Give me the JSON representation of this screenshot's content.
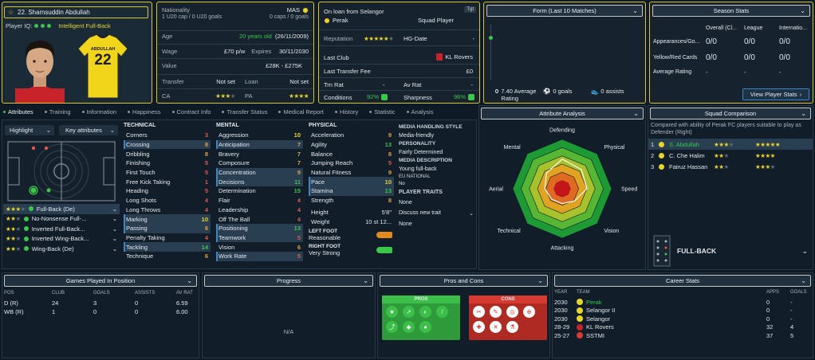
{
  "player": {
    "name": "22. Shamsuddin Abdullah",
    "iq_label": "Player IQ:",
    "role": "Intelligent Full-Back",
    "shirt_name": "ABDULLAH",
    "shirt_number": "22"
  },
  "bio": {
    "nationality_label": "Nationality",
    "nationality": "MAS",
    "caps": "1 U20 cap / 0 U20 goals",
    "caps_right": "0 caps / 0 goals",
    "age_label": "Age",
    "age": "20 years old",
    "dob": "(26/11/2009)",
    "wage_label": "Wage",
    "wage": "£70 p/w",
    "expires_label": "Expires",
    "expires": "30/11/2030",
    "value_label": "Value",
    "value": "£28K - £275K",
    "transfer_label": "Transfer",
    "transfer": "Not set",
    "loan_label": "Loan",
    "loan": "Not set",
    "ca_label": "CA",
    "pa_label": "PA"
  },
  "loan": {
    "title": "On loan from Selangor",
    "club": "Perak",
    "squad": "Squad Player",
    "tgt": "Tgt",
    "reputation_label": "Reputation",
    "hgdate_label": "HG-Date",
    "hgdate": "-",
    "lastclub_label": "Last Club",
    "lastclub": "KL Rovers",
    "fee_label": "Last Transfer Fee",
    "fee": "£0",
    "trm_label": "Trn Rat",
    "trm": "-",
    "av_label": "Av Rat",
    "av": "-",
    "conditions_label": "Conditions",
    "conditions": "92%",
    "sharpness_label": "Sharpness",
    "sharpness": "96%"
  },
  "form": {
    "title": "Form (Last 10 Matches)",
    "avg": "7.40 Average Rating",
    "goals": "0 goals",
    "assists": "0 assists"
  },
  "season": {
    "title": "Season Stats",
    "cols": [
      "Overall (Cl...",
      "League",
      "Internatio..."
    ],
    "rows": [
      {
        "label": "Appearances/Go...",
        "vals": [
          "0/0",
          "0/0",
          "0/0"
        ]
      },
      {
        "label": "Yellow/Red Cards",
        "vals": [
          "0/0",
          "0/0",
          "0/0"
        ]
      },
      {
        "label": "Average Rating",
        "vals": [
          "-",
          "-",
          "-"
        ]
      }
    ],
    "button": "View Player Stats"
  },
  "tabs": [
    "Attributes",
    "Training",
    "Information",
    "Happiness",
    "Contract Info",
    "Transfer Status",
    "Medical Report",
    "History",
    "Statistic",
    "Analysis"
  ],
  "controls": {
    "highlight": "Highlight",
    "key": "Key attributes"
  },
  "technical": {
    "title": "TECHNICAL",
    "items": [
      [
        "Corners",
        "3",
        "r"
      ],
      [
        "Crossing",
        "8",
        "o"
      ],
      [
        "Dribbling",
        "8",
        "o"
      ],
      [
        "Finishing",
        "5",
        "r"
      ],
      [
        "First Touch",
        "5",
        "r"
      ],
      [
        "Free Kick Taking",
        "1",
        "r"
      ],
      [
        "Heading",
        "5",
        "r"
      ],
      [
        "Long Shots",
        "4",
        "r"
      ],
      [
        "Long Throws",
        "4",
        "r"
      ],
      [
        "Marking",
        "10",
        "y"
      ],
      [
        "Passing",
        "6",
        "o"
      ],
      [
        "Penalty Taking",
        "4",
        "r"
      ],
      [
        "Tackling",
        "14",
        "g"
      ],
      [
        "Technique",
        "6",
        "o"
      ]
    ]
  },
  "mental": {
    "title": "MENTAL",
    "items": [
      [
        "Aggression",
        "10",
        "y"
      ],
      [
        "Anticipation",
        "7",
        "o"
      ],
      [
        "Bravery",
        "7",
        "o"
      ],
      [
        "Composure",
        "7",
        "o"
      ],
      [
        "Concentration",
        "9",
        "o"
      ],
      [
        "Decisions",
        "11",
        "g"
      ],
      [
        "Determination",
        "15",
        "g"
      ],
      [
        "Flair",
        "4",
        "r"
      ],
      [
        "Leadership",
        "4",
        "r"
      ],
      [
        "Off The Ball",
        "4",
        "r"
      ],
      [
        "Positioning",
        "13",
        "g"
      ],
      [
        "Teamwork",
        "5",
        "r"
      ],
      [
        "Vision",
        "6",
        "o"
      ],
      [
        "Work Rate",
        "5",
        "r"
      ]
    ]
  },
  "physical": {
    "title": "PHYSICAL",
    "items": [
      [
        "Acceleration",
        "9",
        "o"
      ],
      [
        "Agility",
        "13",
        "g"
      ],
      [
        "Balance",
        "8",
        "o"
      ],
      [
        "Jumping Reach",
        "5",
        "r"
      ],
      [
        "Natural Fitness",
        "9",
        "o"
      ],
      [
        "Pace",
        "10",
        "y"
      ],
      [
        "Stamina",
        "13",
        "g"
      ],
      [
        "Strength",
        "8",
        "o"
      ]
    ],
    "height_label": "Height",
    "height": "5'8\"",
    "weight_label": "Weight",
    "weight": "10 st 12...",
    "left_label": "LEFT FOOT",
    "left": "Reasonable",
    "right_label": "RIGHT FOOT",
    "right": "Very Strong"
  },
  "media": {
    "title": "MEDIA HANDLING STYLE",
    "style": "Media-friendly",
    "personality_label": "PERSONALITY",
    "personality": "Fairly Determined",
    "desc_label": "MEDIA DESCRIPTION",
    "desc": "Young full-back",
    "eu_label": "EU NATIONAL",
    "eu": "No",
    "traits_label": "PLAYER TRAITS",
    "traits": "None",
    "discuss": "Discuss new trait",
    "traits2": "None"
  },
  "roles": [
    {
      "name": "Full-Back (De)",
      "s": 3
    },
    {
      "name": "No-Nonsense Full-...",
      "s": 2
    },
    {
      "name": "Inverted Full-Back...",
      "s": 2
    },
    {
      "name": "Inverted Wing-Back...",
      "s": 2
    },
    {
      "name": "Wing-Back (De)",
      "s": 2
    }
  ],
  "analysis": {
    "title": "Attribute Analysis",
    "labels": [
      "Defending",
      "Physical",
      "Speed",
      "Vision",
      "Attacking",
      "Technical",
      "Aerial",
      "Mental"
    ],
    "values": [
      0.6,
      0.55,
      0.5,
      0.35,
      0.3,
      0.3,
      0.35,
      0.45
    ]
  },
  "squad": {
    "title": "Squad Comparison",
    "desc": "Compared with ability of Perak FC players suitable to play as Defender (Right)",
    "rows": [
      {
        "n": "1",
        "name": "S. Abdullah",
        "a": 3,
        "b": 5
      },
      {
        "n": "2",
        "name": "C. Che Halim",
        "a": 2,
        "b": 4
      },
      {
        "n": "3",
        "name": "Fairuz Hassan",
        "a": 2,
        "b": 3
      }
    ],
    "position": "FULL-BACK"
  },
  "games": {
    "title": "Games Played In Position",
    "cols": [
      "POS",
      "CLUB",
      "GOALS",
      "ASSISTS",
      "AV RAT"
    ],
    "rows": [
      [
        "D (R)",
        "24",
        "3",
        "0",
        "6.59"
      ],
      [
        "WB (R)",
        "1",
        "0",
        "0",
        "6.00"
      ]
    ]
  },
  "progress": {
    "title": "Progress",
    "na": "N/A"
  },
  "proscons": {
    "title": "Pros and Cons",
    "pros": "PROS",
    "cons": "CONS"
  },
  "career": {
    "title": "Career Stats",
    "cols": [
      "YEAR",
      "TEAM",
      "APPS",
      "GOALS"
    ],
    "rows": [
      [
        "2030",
        "Perak",
        "0",
        "-"
      ],
      [
        "2030",
        "Selangor II",
        "0",
        "-"
      ],
      [
        "2030",
        "Selangor",
        "0",
        "-"
      ],
      [
        "28-29",
        "KL Rovers",
        "32",
        "4"
      ],
      [
        "25-27",
        "SSTMI",
        "37",
        "5"
      ]
    ]
  },
  "colors": {
    "accent": "#d8c626",
    "blue": "#3a86c8",
    "green": "#3bc74a"
  }
}
